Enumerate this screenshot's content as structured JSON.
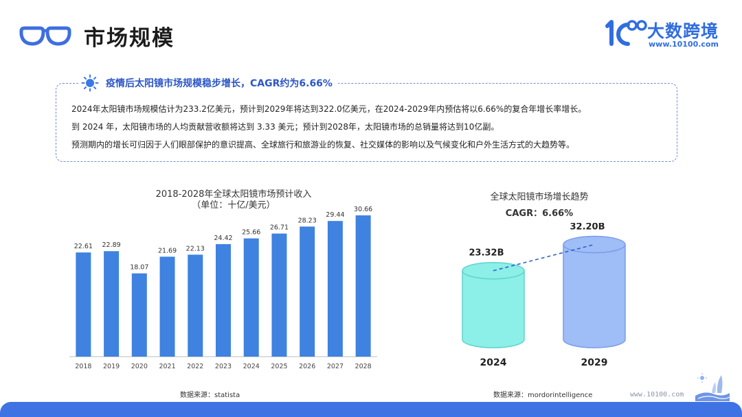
{
  "header": {
    "title": "市场规模"
  },
  "logo": {
    "name": "大数跨境",
    "url": "www.10100.com"
  },
  "summary": {
    "headline": "疫情后太阳镜市场规模稳步增长，CAGR约为6.66%",
    "lines": [
      "2024年太阳镜市场规模估计为233.2亿美元，预计到2029年将达到322.0亿美元，在2024-2029年内预估将以6.66%的复合年增长率增长。",
      "到 2024 年，太阳镜市场的人均贡献营收额将达到 3.33 美元；预计到2028年，太阳镜市场的总销量将达到10亿副。",
      "预测期内的增长可归因于人们眼部保护的意识提高、全球旅行和旅游业的恢复、社交媒体的影响以及气候变化和户外生活方式的大趋势等。"
    ]
  },
  "footer": {
    "corner_url": "www.10100.com"
  },
  "chart_data": [
    {
      "type": "bar",
      "title": "2018-2028年全球太阳镜市场预计收入",
      "subtitle": "（单位：十亿/美元）",
      "categories": [
        "2018",
        "2019",
        "2020",
        "2021",
        "2022",
        "2023",
        "2024",
        "2025",
        "2026",
        "2027",
        "2028"
      ],
      "values": [
        22.61,
        22.89,
        18.07,
        21.69,
        22.13,
        24.42,
        25.66,
        26.71,
        28.23,
        29.44,
        30.66
      ],
      "value_labels": [
        "22.61",
        "22.89",
        "18.07",
        "21.69",
        "22.13",
        "24.42",
        "25.66",
        "26.71",
        "28.23",
        "29.44",
        "30.66"
      ],
      "ylim": [
        0,
        32
      ],
      "grid": false,
      "bar_color": "#3f82e0",
      "source": "数据来源：statista"
    },
    {
      "type": "bar",
      "title": "全球太阳镜市场增长趋势",
      "subtitle": "CAGR：6.66%",
      "categories": [
        "2024",
        "2029"
      ],
      "values": [
        23.32,
        32.2
      ],
      "value_labels": [
        "23.32B",
        "32.20B"
      ],
      "colors": [
        "#8cefe8",
        "#9fbdf6"
      ],
      "source": "数据来源：mordorintelligence"
    }
  ]
}
